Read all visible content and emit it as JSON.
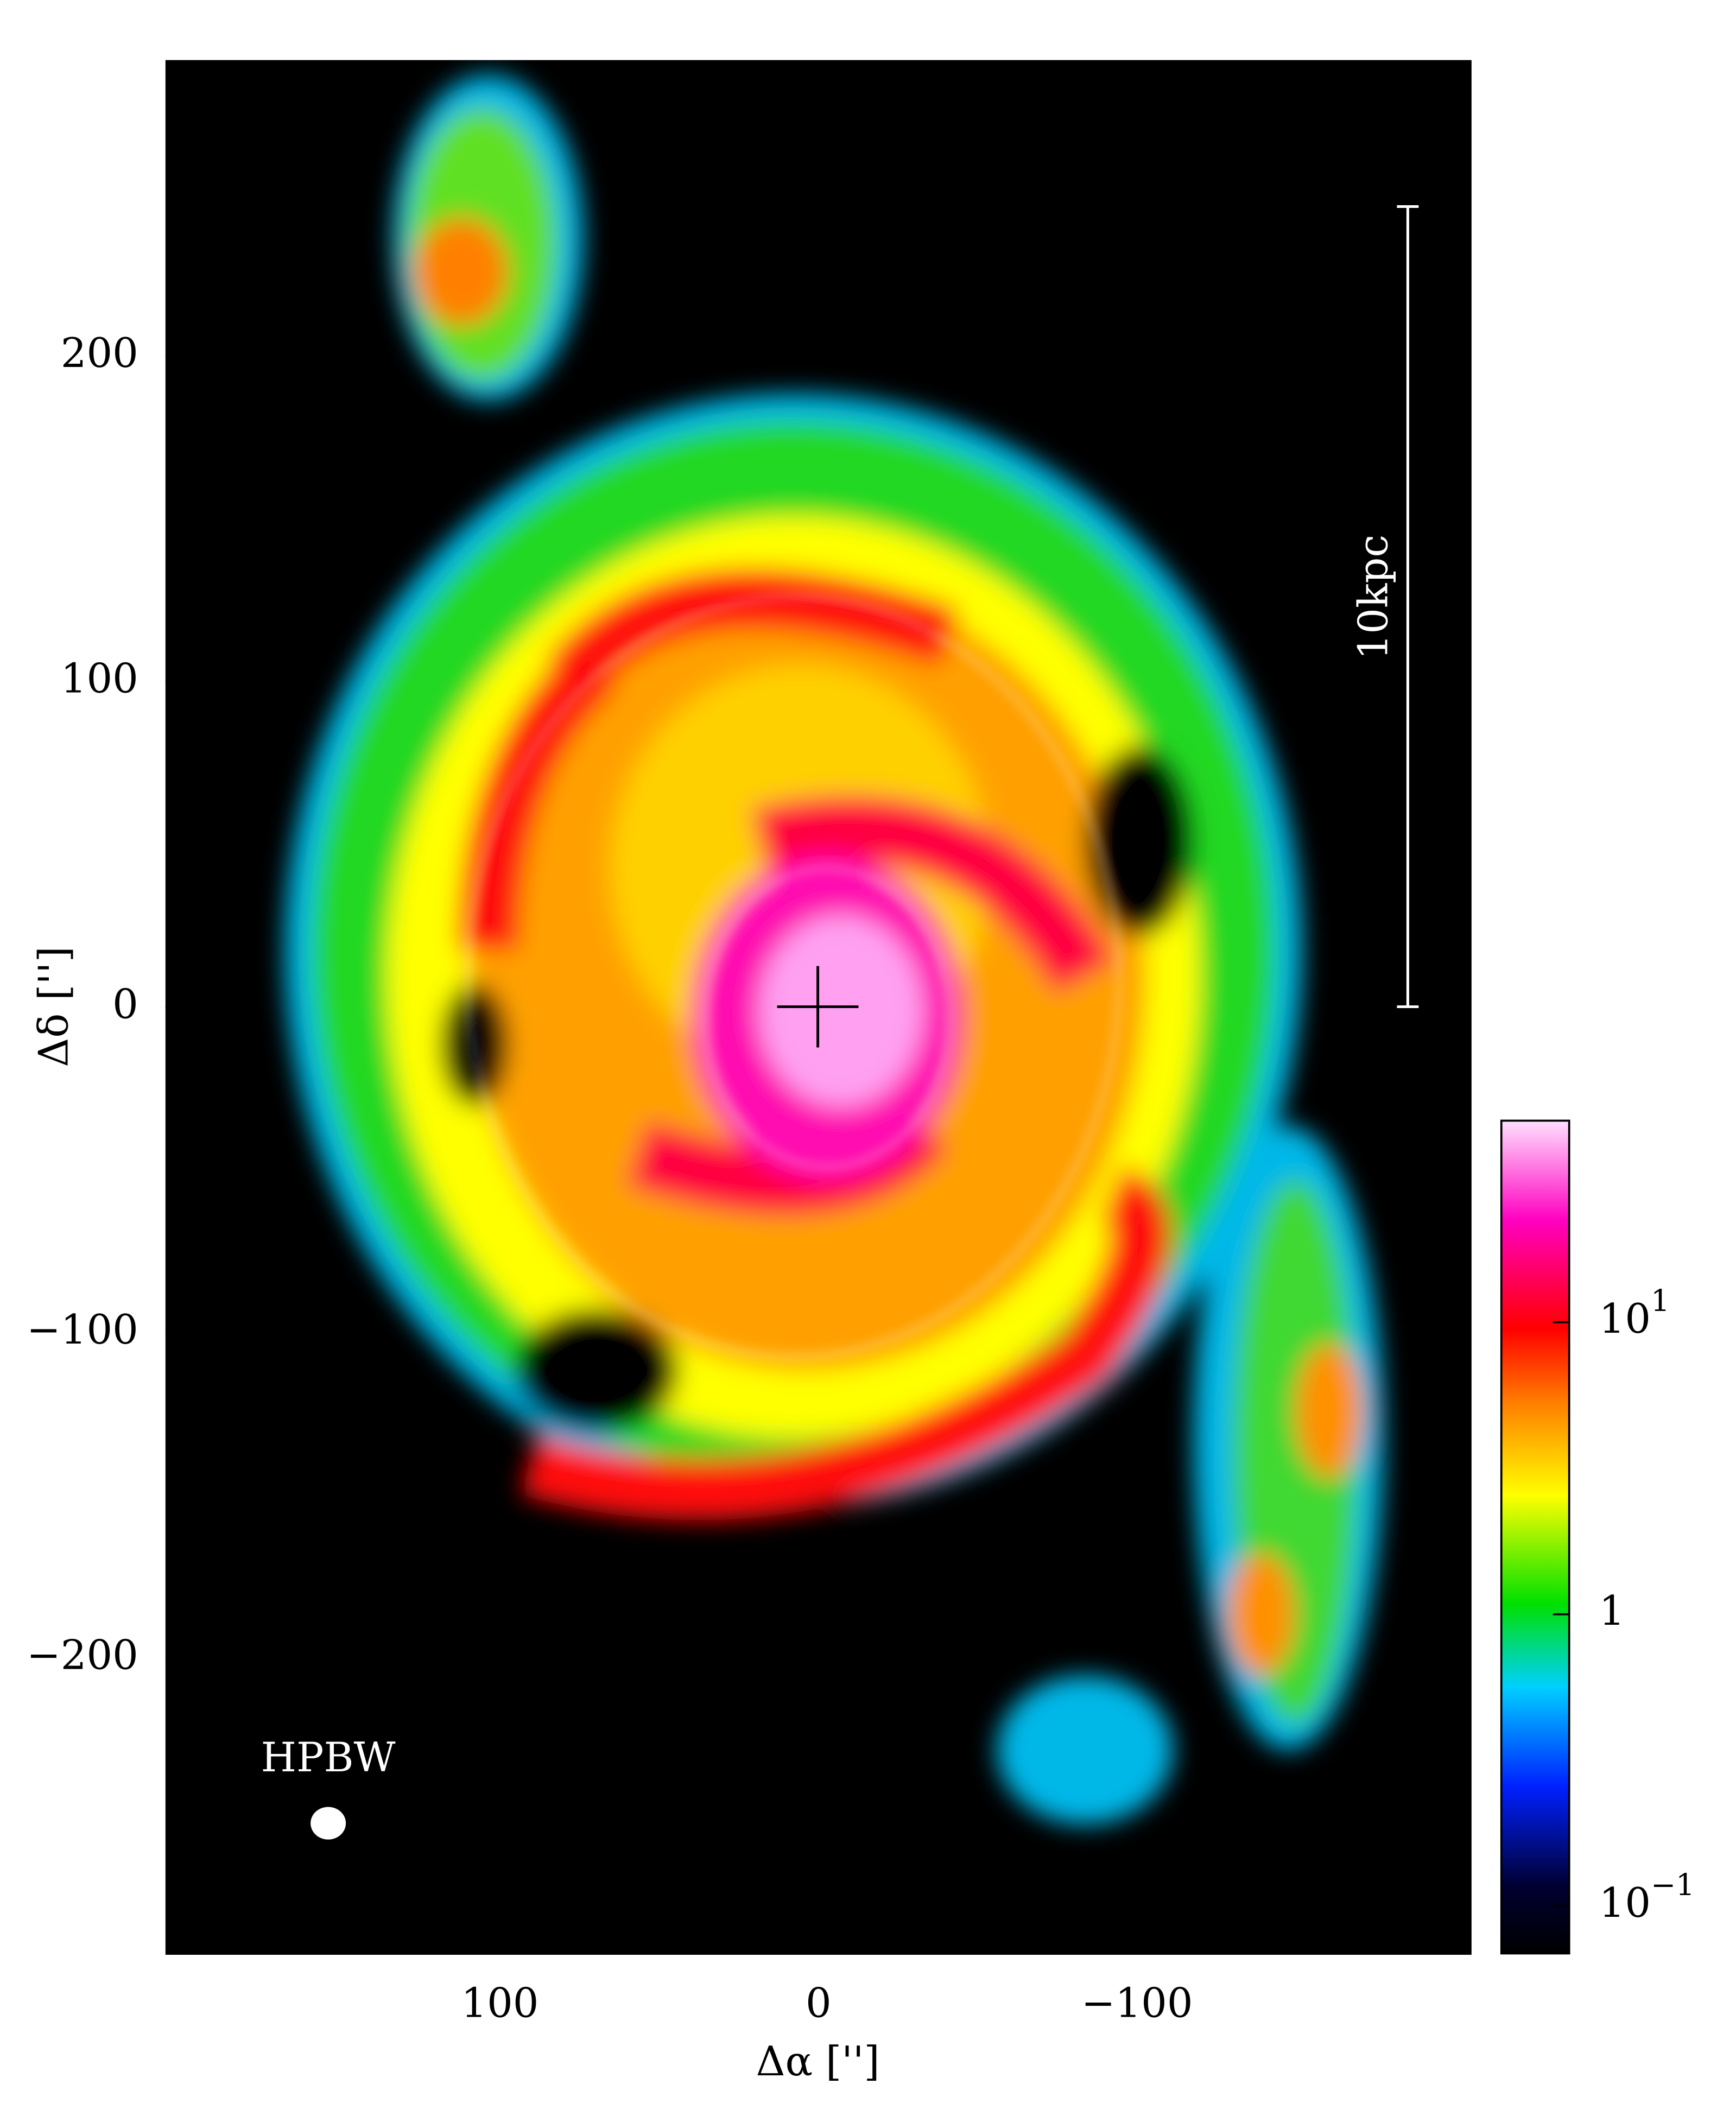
{
  "chart_data": {
    "type": "image",
    "x_label": "Δα ['']",
    "y_label": "Δδ ['']",
    "xlim": [
      205,
      -205
    ],
    "ylim": [
      -291,
      291
    ],
    "xticks": [
      100,
      0,
      {
        "value": -100,
        "label": "−100"
      }
    ],
    "yticks": [
      {
        "value": -200,
        "label": "−200"
      },
      {
        "value": -100,
        "label": "−100"
      },
      0,
      100,
      200
    ],
    "annotations": [
      "HPBW",
      "10kpc"
    ],
    "colorbar": {
      "scale": "log",
      "clim": [
        0.069,
        49
      ],
      "ticks": [
        {
          "value": 0.1,
          "label": "10",
          "exponent": "−1"
        },
        1,
        {
          "value": 10,
          "label": "10",
          "exponent": "1"
        }
      ]
    }
  }
}
